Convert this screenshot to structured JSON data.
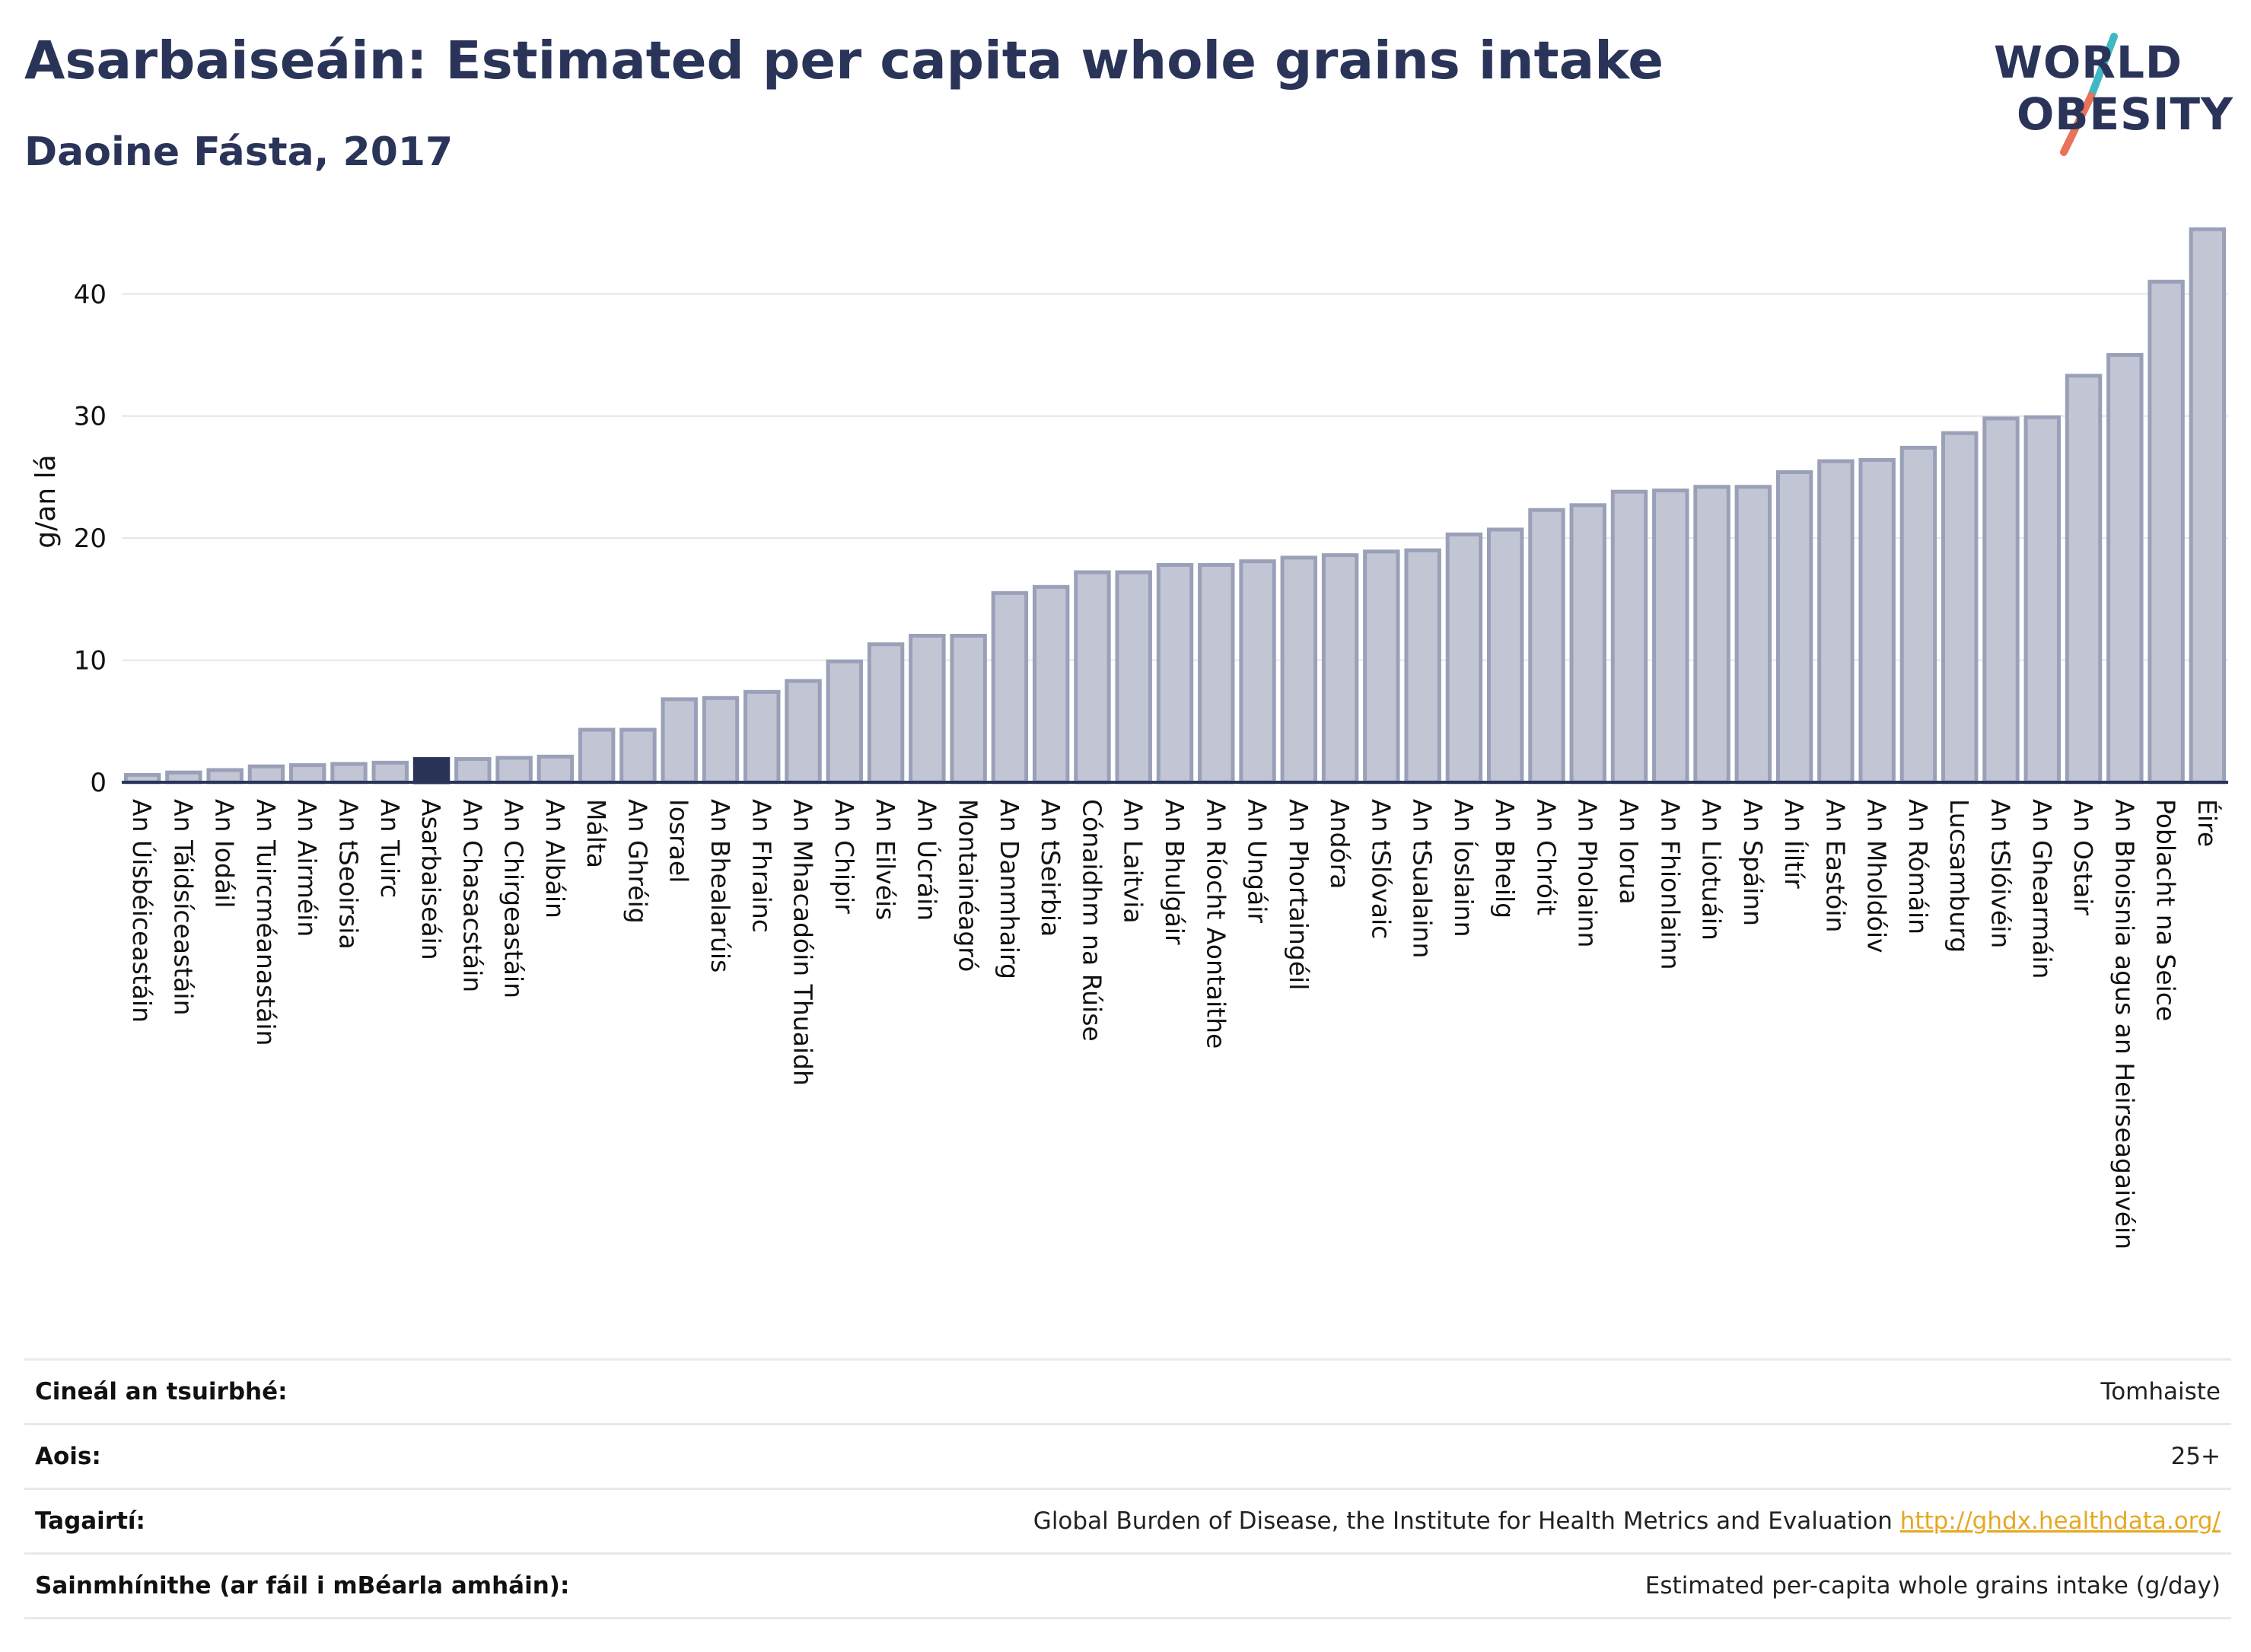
{
  "header": {
    "title": "Asarbaiseáin: Estimated per capita whole grains intake",
    "subtitle": "Daoine Fásta, 2017"
  },
  "logo": {
    "line1": "WORLD",
    "line2": "OBESITY",
    "slash_colors": [
      "#3fb8c4",
      "#e8725a"
    ]
  },
  "colors": {
    "bar": "#c2c5d4",
    "bar_stroke": "#9aa0b8",
    "highlight": "#2a3459",
    "grid": "#e6e6ea",
    "axis": "#2a3459",
    "link": "#e5a823"
  },
  "chart_data": {
    "type": "bar",
    "ylabel": "g/an lá",
    "ylim": [
      0,
      46
    ],
    "yticks": [
      0,
      10,
      20,
      30,
      40
    ],
    "grid": true,
    "highlight": "Asarbaiseáin",
    "categories": [
      "An Úisbéiceastáin",
      "An Táidsíceastáin",
      "An Iodáil",
      "An Tuircméanastáin",
      "An Airméin",
      "An tSeoirsia",
      "An Tuirc",
      "Asarbaiseáin",
      "An Chasacstáin",
      "An Chirgeastáin",
      "An Albáin",
      "Málta",
      "An Ghréig",
      "Iosrael",
      "An Bhealarúis",
      "An Fhrainc",
      "An Mhacadóin Thuaidh",
      "An Chipir",
      "An Eilvéis",
      "An Úcráin",
      "Montainéagró",
      "An Danmhairg",
      "An tSeirbia",
      "Cónaidhm na Rúise",
      "An Laitvia",
      "An Bhulgáir",
      "An Ríocht Aontaithe",
      "An Ungáir",
      "An Phortaingéil",
      "Andóra",
      "An tSlóvaic",
      "An tSualainn",
      "An Íoslainn",
      "An Bheilg",
      "An Chróit",
      "An Pholainn",
      "An Iorua",
      "An Fhionlainn",
      "An Liotuáin",
      "An Spáinn",
      "An Íiltír",
      "An Eastóin",
      "An Mholdóiv",
      "An Rómáin",
      "Lucsamburg",
      "An tSlóivéin",
      "An Ghearmáin",
      "An Ostair",
      "An Bhoisnia agus an Heirseagaivéin",
      "Poblacht na Seice",
      "Éire"
    ],
    "values": [
      0.6,
      0.8,
      1.0,
      1.3,
      1.4,
      1.5,
      1.6,
      1.9,
      1.9,
      2.0,
      2.1,
      4.3,
      4.3,
      6.8,
      6.9,
      7.4,
      8.3,
      9.9,
      11.3,
      12.0,
      12.0,
      15.5,
      16.0,
      17.2,
      17.2,
      17.8,
      17.8,
      18.1,
      18.4,
      18.6,
      18.9,
      19.0,
      20.3,
      20.7,
      22.3,
      22.7,
      23.8,
      23.9,
      24.2,
      24.2,
      25.4,
      26.3,
      26.4,
      27.4,
      28.6,
      29.8,
      29.9,
      33.3,
      35.0,
      41.0,
      45.3
    ]
  },
  "info": {
    "survey_type_label": "Cineál an tsuirbhé:",
    "survey_type_value": "Tomhaiste",
    "age_label": "Aois:",
    "age_value": "25+",
    "references_label": "Tagairtí:",
    "references_value": "Global Burden of Disease, the Institute for Health Metrics and Evaluation",
    "references_link": "http://ghdx.healthdata.org/",
    "definitions_label": "Sainmhínithe (ar fáil i mBéarla amháin):",
    "definitions_value": "Estimated per-capita whole grains intake (g/day)"
  }
}
